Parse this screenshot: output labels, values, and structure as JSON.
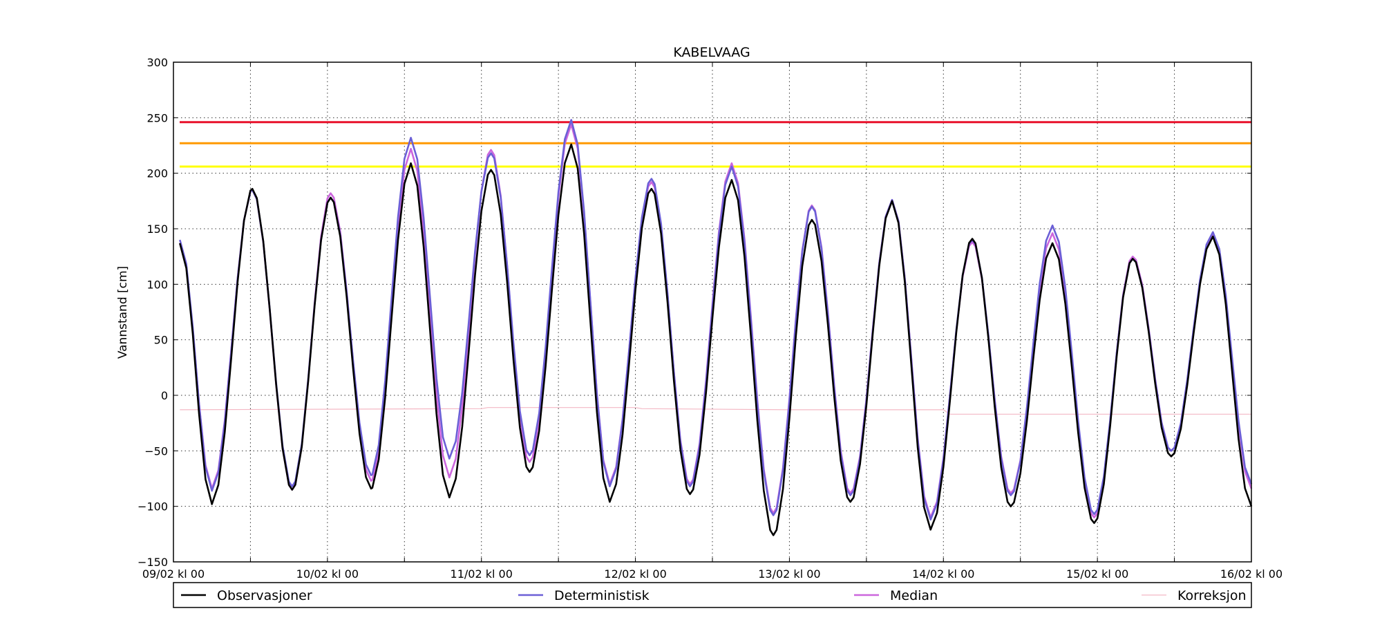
{
  "chart_data": {
    "type": "line",
    "title": "KABELVAAG",
    "xlabel": "",
    "ylabel": "Vannstand [cm]",
    "ylim": [
      -150,
      300
    ],
    "yticks": [
      -150,
      -100,
      -50,
      0,
      50,
      100,
      150,
      200,
      250,
      300
    ],
    "xticks": [
      "09/02 kl 00",
      "10/02 kl 00",
      "11/02 kl 00",
      "12/02 kl 00",
      "13/02 kl 00",
      "14/02 kl 00",
      "15/02 kl 00",
      "16/02 kl 00"
    ],
    "xlim_hours": [
      0,
      168
    ],
    "grid": true,
    "legend_position": "bottom",
    "thresholds": [
      {
        "value": 246,
        "color": "#e8102a"
      },
      {
        "value": 227,
        "color": "#ff9900"
      },
      {
        "value": 206,
        "color": "#ffff00"
      }
    ],
    "series": [
      {
        "name": "Observasjoner",
        "color": "#000000",
        "key": "obs",
        "extremes": [
          [
            1,
            137
          ],
          [
            6,
            -98
          ],
          [
            12.3,
            186
          ],
          [
            18.5,
            -85
          ],
          [
            24.5,
            178
          ],
          [
            30.8,
            -84
          ],
          [
            37,
            209
          ],
          [
            43,
            -92
          ],
          [
            49.5,
            203
          ],
          [
            55.5,
            -69
          ],
          [
            62,
            226
          ],
          [
            68,
            -96
          ],
          [
            74.5,
            186
          ],
          [
            80.5,
            -89
          ],
          [
            87,
            194
          ],
          [
            93.5,
            -126
          ],
          [
            99.5,
            158
          ],
          [
            105.5,
            -96
          ],
          [
            112,
            175
          ],
          [
            118,
            -121
          ],
          [
            124.5,
            141
          ],
          [
            130.5,
            -100
          ],
          [
            137,
            137
          ],
          [
            143.5,
            -115
          ],
          [
            149.5,
            123
          ],
          [
            155.5,
            -55
          ],
          [
            162,
            143
          ],
          [
            168,
            -100
          ]
        ]
      },
      {
        "name": "Deterministisk",
        "color": "#6b5fd6",
        "key": "det",
        "extremes": [
          [
            1,
            140
          ],
          [
            6,
            -86
          ],
          [
            12.3,
            185
          ],
          [
            18.5,
            -82
          ],
          [
            24.5,
            178
          ],
          [
            30.8,
            -72
          ],
          [
            37,
            232
          ],
          [
            43,
            -57
          ],
          [
            49.5,
            218
          ],
          [
            55.5,
            -54
          ],
          [
            62,
            248
          ],
          [
            68,
            -82
          ],
          [
            74.5,
            195
          ],
          [
            80.5,
            -82
          ],
          [
            87,
            206
          ],
          [
            93.5,
            -108
          ],
          [
            99.5,
            170
          ],
          [
            105.5,
            -90
          ],
          [
            112,
            176
          ],
          [
            118,
            -112
          ],
          [
            124.5,
            140
          ],
          [
            130.5,
            -90
          ],
          [
            137,
            153
          ],
          [
            143.5,
            -107
          ],
          [
            149.5,
            123
          ],
          [
            155.5,
            -50
          ],
          [
            162,
            147
          ],
          [
            168,
            -80
          ]
        ]
      },
      {
        "name": "Median",
        "color": "#cc66dd",
        "key": "med",
        "extremes": [
          [
            1,
            137
          ],
          [
            6,
            -84
          ],
          [
            12.3,
            185
          ],
          [
            18.5,
            -85
          ],
          [
            24.5,
            182
          ],
          [
            30.8,
            -77
          ],
          [
            37,
            222
          ],
          [
            43,
            -74
          ],
          [
            49.5,
            221
          ],
          [
            55.5,
            -60
          ],
          [
            62,
            244
          ],
          [
            68,
            -80
          ],
          [
            74.5,
            192
          ],
          [
            80.5,
            -80
          ],
          [
            87,
            209
          ],
          [
            93.5,
            -106
          ],
          [
            99.5,
            171
          ],
          [
            105.5,
            -88
          ],
          [
            112,
            176
          ],
          [
            118,
            -110
          ],
          [
            124.5,
            138
          ],
          [
            130.5,
            -88
          ],
          [
            137,
            146
          ],
          [
            143.5,
            -110
          ],
          [
            149.5,
            125
          ],
          [
            155.5,
            -50
          ],
          [
            162,
            145
          ],
          [
            168,
            -84
          ]
        ]
      },
      {
        "name": "Korreksjon",
        "color": "#f4b8c4",
        "key": "kor",
        "points": [
          [
            1,
            -13
          ],
          [
            48,
            -12
          ],
          [
            49,
            -11
          ],
          [
            72,
            -11
          ],
          [
            73,
            -12
          ],
          [
            96,
            -13
          ],
          [
            120,
            -13
          ],
          [
            121,
            -17
          ],
          [
            168,
            -17
          ]
        ]
      }
    ]
  }
}
